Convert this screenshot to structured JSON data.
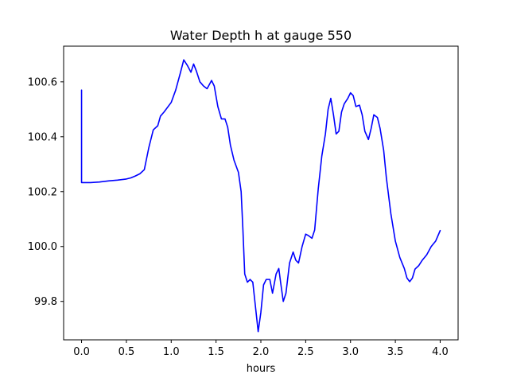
{
  "chart_data": {
    "type": "line",
    "title": "Water Depth h at gauge 550",
    "xlabel": "hours",
    "ylabel": "",
    "xlim": [
      -0.2,
      4.2
    ],
    "ylim": [
      99.66,
      100.73
    ],
    "xticks": [
      0.0,
      0.5,
      1.0,
      1.5,
      2.0,
      2.5,
      3.0,
      3.5,
      4.0
    ],
    "xtick_labels": [
      "0.0",
      "0.5",
      "1.0",
      "1.5",
      "2.0",
      "2.5",
      "3.0",
      "3.5",
      "4.0"
    ],
    "yticks": [
      99.8,
      100.0,
      100.2,
      100.4,
      100.6
    ],
    "ytick_labels": [
      "99.8",
      "100.0",
      "100.2",
      "100.4",
      "100.6"
    ],
    "grid": false,
    "series": [
      {
        "color": "#0000ff",
        "x": [
          0.0,
          0.0,
          0.0,
          0.1,
          0.2,
          0.3,
          0.4,
          0.5,
          0.55,
          0.6,
          0.65,
          0.7,
          0.75,
          0.8,
          0.85,
          0.88,
          0.92,
          1.0,
          1.05,
          1.1,
          1.14,
          1.18,
          1.22,
          1.25,
          1.28,
          1.32,
          1.36,
          1.4,
          1.45,
          1.48,
          1.52,
          1.56,
          1.6,
          1.63,
          1.66,
          1.7,
          1.75,
          1.78,
          1.8,
          1.82,
          1.85,
          1.88,
          1.91,
          1.94,
          1.97,
          2.0,
          2.03,
          2.06,
          2.1,
          2.13,
          2.17,
          2.2,
          2.22,
          2.25,
          2.28,
          2.32,
          2.36,
          2.39,
          2.42,
          2.46,
          2.5,
          2.53,
          2.57,
          2.6,
          2.64,
          2.68,
          2.72,
          2.75,
          2.78,
          2.81,
          2.84,
          2.87,
          2.9,
          2.93,
          2.97,
          3.0,
          3.03,
          3.06,
          3.1,
          3.13,
          3.16,
          3.2,
          3.23,
          3.26,
          3.3,
          3.33,
          3.37,
          3.4,
          3.45,
          3.5,
          3.55,
          3.6,
          3.63,
          3.66,
          3.69,
          3.72,
          3.76,
          3.8,
          3.85,
          3.9,
          3.95,
          4.0
        ],
        "y": [
          100.57,
          100.233,
          100.233,
          100.233,
          100.235,
          100.239,
          100.242,
          100.246,
          100.25,
          100.257,
          100.265,
          100.28,
          100.36,
          100.425,
          100.44,
          100.475,
          100.49,
          100.525,
          100.57,
          100.63,
          100.68,
          100.66,
          100.635,
          100.665,
          100.64,
          100.6,
          100.585,
          100.575,
          100.605,
          100.585,
          100.51,
          100.465,
          100.465,
          100.435,
          100.37,
          100.315,
          100.27,
          100.2,
          100.06,
          99.9,
          99.87,
          99.88,
          99.87,
          99.78,
          99.69,
          99.76,
          99.86,
          99.88,
          99.88,
          99.83,
          99.9,
          99.92,
          99.87,
          99.8,
          99.83,
          99.94,
          99.98,
          99.95,
          99.94,
          100.0,
          100.045,
          100.04,
          100.03,
          100.06,
          100.21,
          100.33,
          100.41,
          100.5,
          100.54,
          100.48,
          100.41,
          100.42,
          100.49,
          100.52,
          100.54,
          100.56,
          100.55,
          100.51,
          100.515,
          100.48,
          100.42,
          100.39,
          100.43,
          100.48,
          100.47,
          100.43,
          100.35,
          100.25,
          100.12,
          100.02,
          99.96,
          99.92,
          99.885,
          99.872,
          99.885,
          99.918,
          99.93,
          99.95,
          99.97,
          100.0,
          100.02,
          100.058
        ]
      }
    ]
  }
}
